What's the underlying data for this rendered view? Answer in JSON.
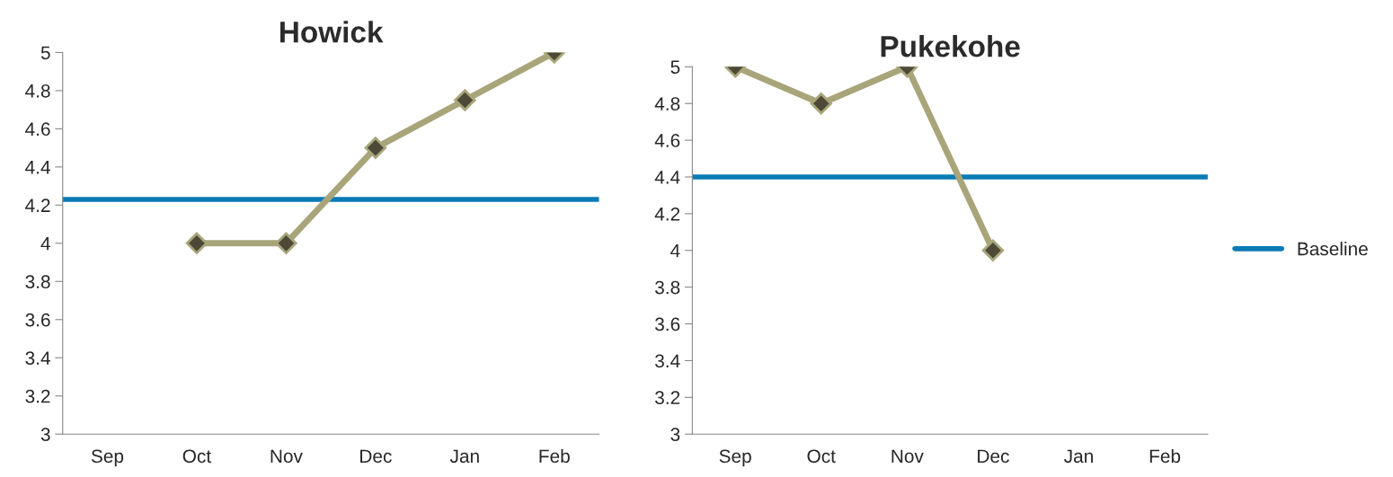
{
  "chart_data": [
    {
      "type": "line",
      "title": "Howick",
      "categories": [
        "Sep",
        "Oct",
        "Nov",
        "Dec",
        "Jan",
        "Feb"
      ],
      "series": [
        {
          "color": "#a8a57a",
          "values": [
            null,
            4,
            4,
            4.5,
            4.75,
            5
          ]
        }
      ],
      "ylim": [
        3,
        5
      ],
      "yticks": [
        3,
        3.2,
        3.4,
        3.6,
        3.8,
        4,
        4.2,
        4.4,
        4.6,
        4.8,
        5
      ],
      "marker": "diamond",
      "grid": false,
      "legend": false,
      "ref_lines": [
        {
          "axis": "y",
          "value": 4.23,
          "color": "#0a7bb5"
        }
      ]
    },
    {
      "type": "line",
      "title": "Pukekohe",
      "categories": [
        "Sep",
        "Oct",
        "Nov",
        "Dec",
        "Jan",
        "Feb"
      ],
      "series": [
        {
          "color": "#a8a57a",
          "values": [
            5,
            4.8,
            5,
            4,
            null,
            null
          ]
        }
      ],
      "ylim": [
        3,
        5
      ],
      "yticks": [
        3,
        3.2,
        3.4,
        3.6,
        3.8,
        4,
        4.2,
        4.4,
        4.6,
        4.8,
        5
      ],
      "marker": "diamond",
      "grid": false,
      "legend": "right",
      "ref_lines": [
        {
          "axis": "y",
          "value": 4.4,
          "label": "Baseline",
          "color": "#0a7bb5"
        }
      ]
    }
  ]
}
